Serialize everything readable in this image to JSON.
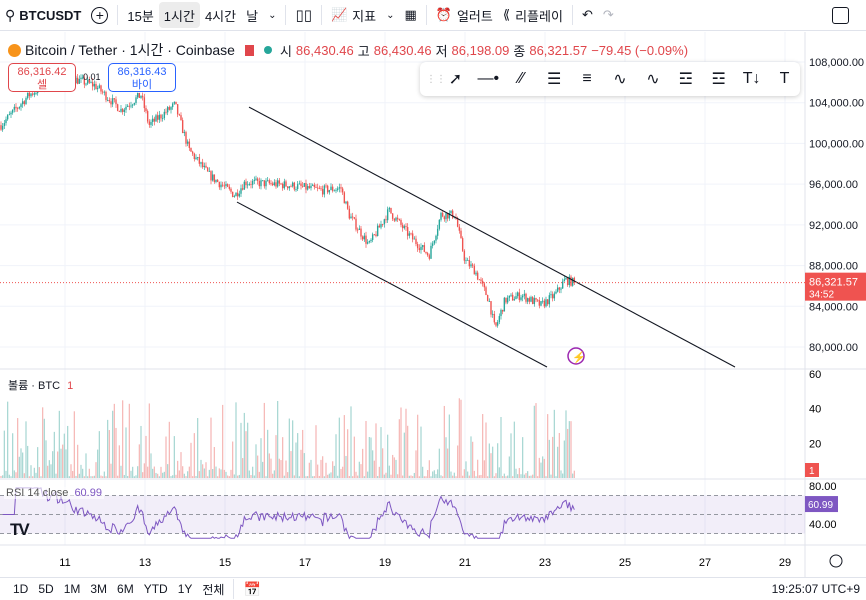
{
  "toolbar": {
    "symbol": "BTCUSDT",
    "intervals": [
      "15분",
      "1시간",
      "4시간",
      "날"
    ],
    "active_interval": "1시간",
    "indicators": "지표",
    "alert": "얼러트",
    "replay": "리플레이"
  },
  "legend": {
    "title": "Bitcoin / Tether · 1시간 · Coinbase",
    "o_label": "시",
    "o": "86,430.46",
    "h_label": "고",
    "h": "86,430.46",
    "l_label": "저",
    "l": "86,198.09",
    "c_label": "종",
    "c": "86,321.57",
    "change": "−79.45 (−0.09%)"
  },
  "sell": {
    "price": "86,316.42",
    "label": "셀"
  },
  "spread": "0.01",
  "buy": {
    "price": "86,316.43",
    "label": "바이"
  },
  "price_axis": {
    "ticks": [
      "108,000.00",
      "104,000.00",
      "100,000.00",
      "96,000.00",
      "92,000.00",
      "88,000.00",
      "84,000.00",
      "80,000.00"
    ],
    "current": "86,321.57",
    "countdown": "34:52"
  },
  "volume": {
    "label": "볼륨 · BTC",
    "value": "1",
    "ticks": [
      "60",
      "40",
      "20"
    ],
    "badge": "1"
  },
  "rsi": {
    "label": "RSI 14 close",
    "value": "60.99",
    "ticks": [
      "80.00",
      "40.00"
    ],
    "badge": "60.99"
  },
  "time_axis": [
    "11",
    "13",
    "15",
    "17",
    "19",
    "21",
    "23",
    "25",
    "27",
    "29"
  ],
  "ranges": [
    "1D",
    "5D",
    "1M",
    "3M",
    "6M",
    "YTD",
    "1Y",
    "전체"
  ],
  "clock": "19:25:07 UTC+9",
  "colors": {
    "up": "#26a69a",
    "down": "#ef5350",
    "rsi": "#7e57c2",
    "accent": "#2962ff"
  },
  "chart_data": {
    "type": "candlestick",
    "price_path": [
      [
        9.4,
        101800
      ],
      [
        10.1,
        104760
      ],
      [
        10.9,
        106700
      ],
      [
        11.75,
        105700
      ],
      [
        12.4,
        103300
      ],
      [
        12.9,
        104760
      ],
      [
        13.1,
        101800
      ],
      [
        13.75,
        103800
      ],
      [
        14.1,
        99350
      ],
      [
        14.6,
        96900
      ],
      [
        15.25,
        94900
      ],
      [
        15.5,
        96200
      ],
      [
        16.6,
        95900
      ],
      [
        17.4,
        95400
      ],
      [
        17.9,
        95600
      ],
      [
        18.1,
        93000
      ],
      [
        18.6,
        90000
      ],
      [
        19.1,
        93400
      ],
      [
        19.6,
        91000
      ],
      [
        20.1,
        89000
      ],
      [
        20.4,
        93000
      ],
      [
        20.75,
        93000
      ],
      [
        21.0,
        88500
      ],
      [
        21.25,
        87500
      ],
      [
        21.6,
        84600
      ],
      [
        21.75,
        81700
      ],
      [
        22.0,
        84600
      ],
      [
        22.4,
        85100
      ],
      [
        22.9,
        84100
      ],
      [
        23.25,
        85100
      ],
      [
        23.5,
        86600
      ],
      [
        23.75,
        86321
      ]
    ],
    "channel": [
      {
        "from": [
          15.6,
          103570
        ],
        "to": [
          27.75,
          78035
        ]
      },
      {
        "from": [
          15.3,
          94240
        ],
        "to": [
          23.05,
          78035
        ]
      }
    ],
    "ylim": [
      78000,
      109000
    ]
  }
}
